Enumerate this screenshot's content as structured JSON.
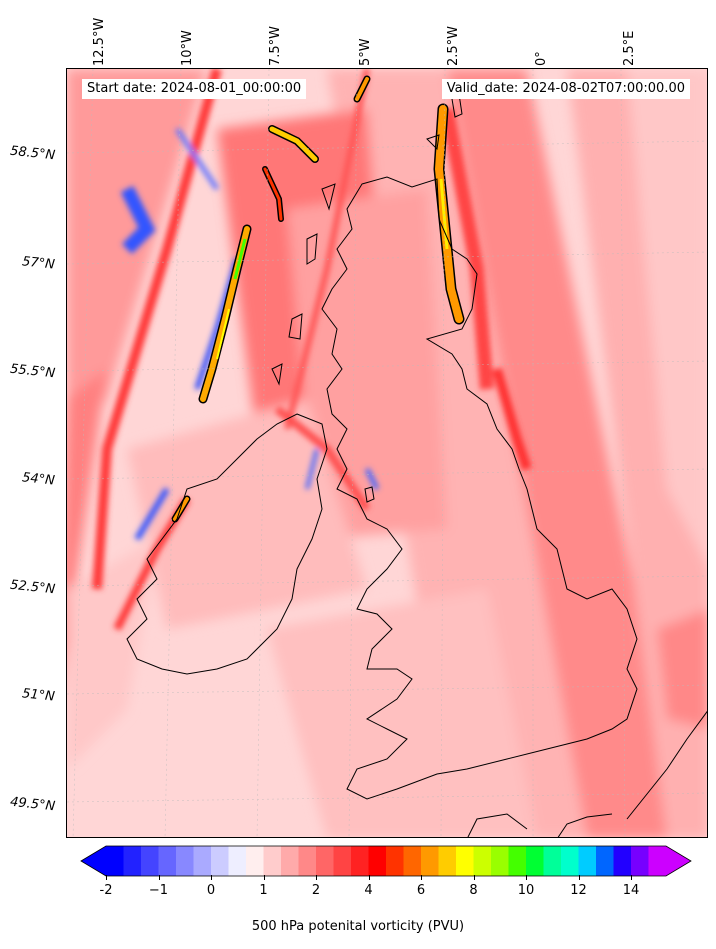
{
  "header": {
    "start_date": "Start date: 2024-08-01_00:00:00",
    "valid_date": "Valid_date: 2024-08-02T07:00:00.00"
  },
  "longitude_labels": [
    {
      "text": "12.5°W"
    },
    {
      "text": "10°W"
    },
    {
      "text": "7.5°W"
    },
    {
      "text": "5°W"
    },
    {
      "text": "2.5°W"
    },
    {
      "text": "0°"
    },
    {
      "text": "2.5°E"
    }
  ],
  "latitude_labels": [
    {
      "text": "58.5°N"
    },
    {
      "text": "57°N"
    },
    {
      "text": "55.5°N"
    },
    {
      "text": "54°N"
    },
    {
      "text": "52.5°N"
    },
    {
      "text": "51°N"
    },
    {
      "text": "49.5°N"
    }
  ],
  "colorbar": {
    "label": "500 hPa potenital vorticity (PVU)",
    "ticks": [
      "-2",
      "−1",
      "0",
      "1",
      "2",
      "4",
      "6",
      "8",
      "10",
      "12",
      "14"
    ],
    "colors": [
      "#0000ff",
      "#2222ff",
      "#4444ff",
      "#6666ff",
      "#8888ff",
      "#aaaaff",
      "#ccccff",
      "#eeeeff",
      "#ffeeee",
      "#ffcccc",
      "#ffaaaa",
      "#ff8888",
      "#ff6666",
      "#ff4444",
      "#ff2222",
      "#ff0000",
      "#ff3300",
      "#ff6600",
      "#ff9900",
      "#ffcc00",
      "#ffff00",
      "#ccff00",
      "#99ff00",
      "#44ff00",
      "#00ff33",
      "#00ff99",
      "#00ffcc",
      "#00ccff",
      "#0066ff",
      "#2200ff",
      "#7700ff",
      "#cc00ff"
    ]
  }
}
